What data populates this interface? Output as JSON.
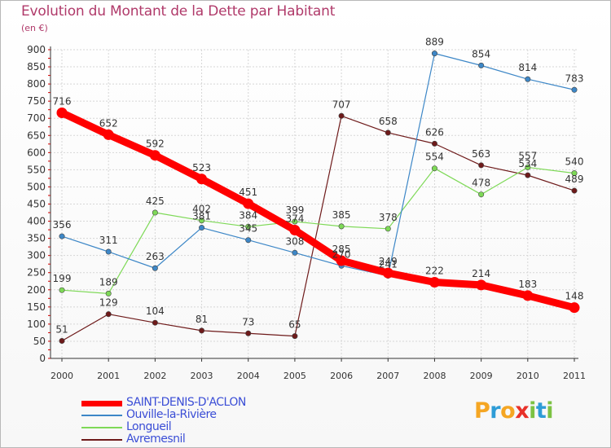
{
  "title": "Evolution du Montant de la Dette par Habitant",
  "subtitle": "(en €)",
  "logo": {
    "text": "Proxiti",
    "letters": [
      "P",
      "r",
      "o",
      "x",
      "i",
      "t",
      "i"
    ],
    "colors": [
      "#f5a623",
      "#2e9cd6",
      "#f5a623",
      "#e8312a",
      "#7cc243",
      "#2e9cd6",
      "#7cc243"
    ]
  },
  "chart_data": {
    "type": "line",
    "title": "Evolution du Montant de la Dette par Habitant",
    "ylabel": "(en €)",
    "xlabel": "",
    "x": [
      "2000",
      "2001",
      "2002",
      "2003",
      "2004",
      "2005",
      "2006",
      "2007",
      "2008",
      "2009",
      "2010",
      "2011"
    ],
    "ylim": [
      0,
      900
    ],
    "yticks": [
      "0",
      "50",
      "100",
      "150",
      "200",
      "250",
      "300",
      "350",
      "400",
      "450",
      "500",
      "550",
      "600",
      "650",
      "700",
      "750",
      "800",
      "850",
      "900"
    ],
    "grid": true,
    "legend_position": "bottom-left",
    "series": [
      {
        "name": "SAINT-DENIS-D'ACLON",
        "color": "#ff0000",
        "values": [
          716,
          652,
          592,
          523,
          451,
          374,
          285,
          249,
          222,
          214,
          183,
          148
        ]
      },
      {
        "name": "Ouville-la-Rivière",
        "color": "#3d87c7",
        "values": [
          356,
          311,
          263,
          381,
          345,
          308,
          270,
          241,
          889,
          854,
          814,
          783
        ]
      },
      {
        "name": "Longueil",
        "color": "#7ed957",
        "values": [
          199,
          189,
          425,
          402,
          384,
          399,
          385,
          378,
          554,
          478,
          557,
          540
        ]
      },
      {
        "name": "Avremesnil",
        "color": "#6e1a1a",
        "values": [
          51,
          129,
          104,
          81,
          73,
          65,
          707,
          658,
          626,
          563,
          534,
          489
        ]
      }
    ]
  }
}
